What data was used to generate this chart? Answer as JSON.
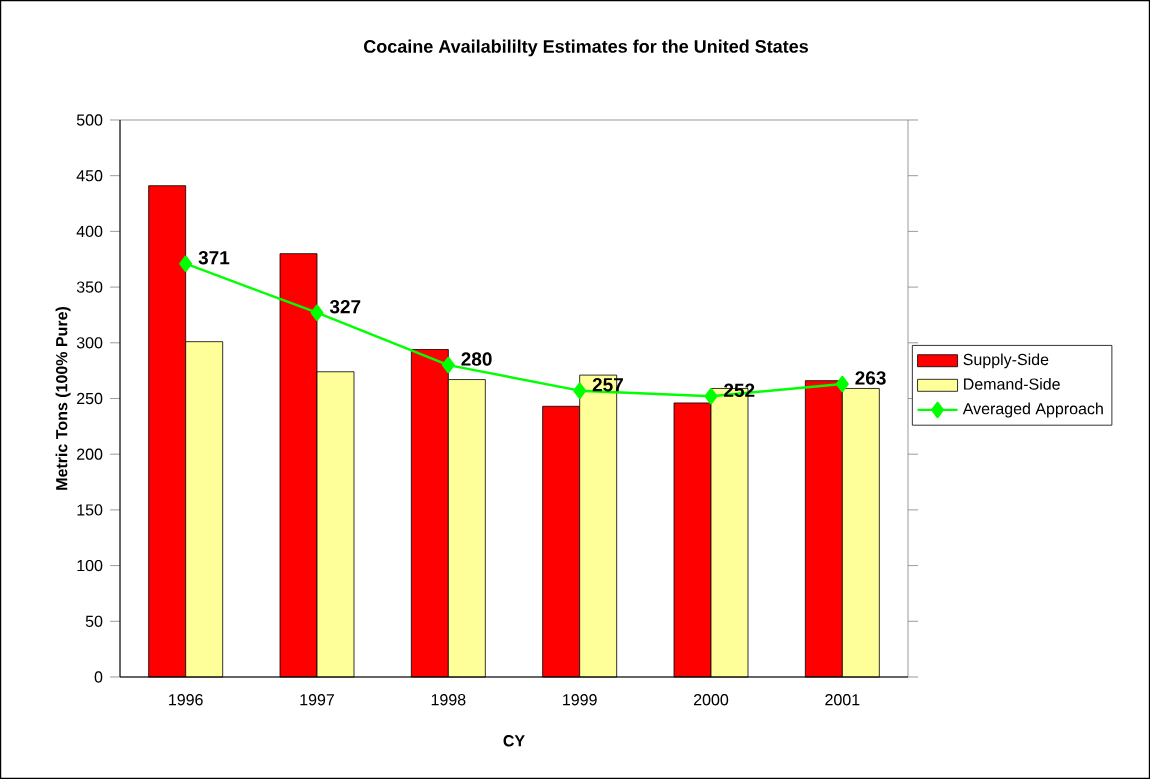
{
  "chart_data": {
    "type": "bar",
    "title": "Cocaine Availabililty Estimates for the United States",
    "xlabel": "CY",
    "ylabel": "Metric Tons (100% Pure)",
    "categories": [
      "1996",
      "1997",
      "1998",
      "1999",
      "2000",
      "2001"
    ],
    "series": [
      {
        "name": "Supply-Side",
        "color": "#ff0000",
        "values": [
          441,
          380,
          294,
          243,
          246,
          266
        ]
      },
      {
        "name": "Demand-Side",
        "color": "#ffff99",
        "values": [
          301,
          274,
          267,
          271,
          259,
          259
        ]
      },
      {
        "name": "Averaged Approach",
        "type": "line",
        "marker": "diamond",
        "color": "#00ff00",
        "values": [
          371,
          327,
          280,
          257,
          252,
          263
        ],
        "value_labels": [
          "371",
          "327",
          "280",
          "257",
          "252",
          "263"
        ]
      }
    ],
    "ylim": [
      0,
      500
    ],
    "yticks": [
      0,
      50,
      100,
      150,
      200,
      250,
      300,
      350,
      400,
      450,
      500
    ],
    "legend": "right"
  }
}
